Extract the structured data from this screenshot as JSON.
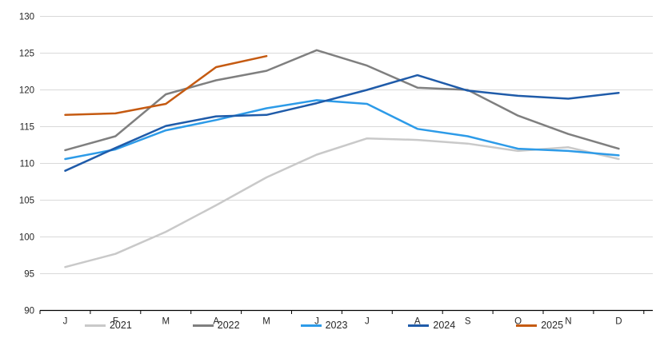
{
  "chart_data": {
    "type": "line",
    "title": "",
    "x_categories": [
      "J",
      "F",
      "M",
      "A",
      "M",
      "J",
      "J",
      "A",
      "S",
      "O",
      "N",
      "D"
    ],
    "xlabel": "",
    "ylabel": "",
    "ylim": [
      90,
      130
    ],
    "y_tick_step": 5,
    "y_tick_labels": [
      "90",
      "95",
      "100",
      "105",
      "110",
      "115",
      "120",
      "125",
      "130"
    ],
    "grid": "horizontal",
    "legend_position": "bottom",
    "series": [
      {
        "name": "2021",
        "color": "#c9c9c9",
        "values": [
          95.9,
          97.7,
          100.7,
          104.3,
          108.1,
          111.2,
          113.4,
          113.2,
          112.7,
          111.7,
          112.2,
          110.6
        ]
      },
      {
        "name": "2022",
        "color": "#7f7f7f",
        "values": [
          111.8,
          113.7,
          119.4,
          121.3,
          122.6,
          125.4,
          123.3,
          120.3,
          120.0,
          116.5,
          114.0,
          112.0
        ]
      },
      {
        "name": "2023",
        "color": "#2d9be8",
        "values": [
          110.6,
          111.9,
          114.5,
          115.9,
          117.5,
          118.6,
          118.1,
          114.7,
          113.7,
          112.0,
          111.7,
          111.1
        ]
      },
      {
        "name": "2024",
        "color": "#1f5ba9",
        "values": [
          109.0,
          112.1,
          115.1,
          116.4,
          116.6,
          118.2,
          120.0,
          122.0,
          119.9,
          119.2,
          118.8,
          119.6
        ]
      },
      {
        "name": "2025",
        "color": "#c55a11",
        "values": [
          116.6,
          116.8,
          118.1,
          123.1,
          124.6
        ]
      }
    ]
  },
  "style_colors": {
    "gridline": "#d9d9d9",
    "axis": "#000000",
    "tick": "#000000",
    "label_text": "#262626"
  }
}
